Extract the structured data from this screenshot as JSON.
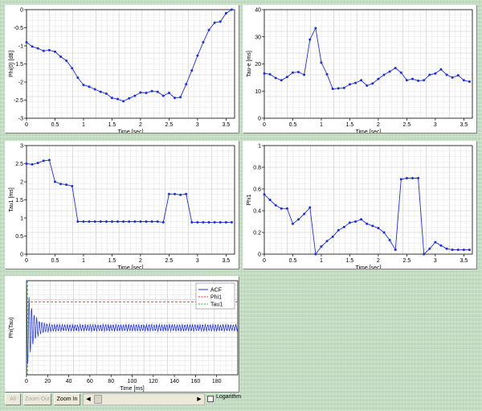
{
  "chart_data": [
    {
      "id": "phi0",
      "type": "line",
      "xlabel": "Time [sec]",
      "ylabel": "Phi(0) [dB]",
      "xlim": [
        0,
        3.65
      ],
      "ylim": [
        -3,
        0
      ],
      "xticks": [
        0,
        0.5,
        1,
        1.5,
        2,
        2.5,
        3,
        3.5
      ],
      "xtick_labels": [
        "0",
        "0.5",
        "1",
        "1.5",
        "2",
        "2.5",
        "3",
        "3.5"
      ],
      "yticks": [
        -3,
        -2.5,
        -2,
        -1.5,
        -1,
        -0.5,
        0
      ],
      "ytick_labels": [
        "-3",
        "-2.5",
        "-2",
        "-1.5",
        "-1",
        "-0.5",
        "0"
      ],
      "grid": true,
      "color": "#1f2fd6",
      "x": [
        0,
        0.1,
        0.2,
        0.3,
        0.4,
        0.5,
        0.6,
        0.7,
        0.8,
        0.9,
        1.0,
        1.1,
        1.2,
        1.3,
        1.4,
        1.5,
        1.6,
        1.7,
        1.8,
        1.9,
        2.0,
        2.1,
        2.2,
        2.3,
        2.4,
        2.5,
        2.6,
        2.7,
        2.8,
        2.9,
        3.0,
        3.1,
        3.2,
        3.3,
        3.4,
        3.5,
        3.6
      ],
      "y": [
        -0.9,
        -1.02,
        -1.07,
        -1.14,
        -1.12,
        -1.16,
        -1.3,
        -1.41,
        -1.62,
        -1.88,
        -2.08,
        -2.13,
        -2.2,
        -2.27,
        -2.32,
        -2.44,
        -2.47,
        -2.53,
        -2.45,
        -2.38,
        -2.29,
        -2.3,
        -2.25,
        -2.27,
        -2.38,
        -2.3,
        -2.44,
        -2.42,
        -2.06,
        -1.68,
        -1.27,
        -0.9,
        -0.56,
        -0.36,
        -0.33,
        -0.1,
        0
      ]
    },
    {
      "id": "taue",
      "type": "line",
      "xlabel": "Time [sec]",
      "ylabel": "Tau-e [ms]",
      "xlim": [
        0,
        3.65
      ],
      "ylim": [
        0,
        40
      ],
      "xticks": [
        0,
        0.5,
        1,
        1.5,
        2,
        2.5,
        3,
        3.5
      ],
      "xtick_labels": [
        "0",
        "0.5",
        "1",
        "1.5",
        "2",
        "2.5",
        "3",
        "3.5"
      ],
      "yticks": [
        0,
        10,
        20,
        30,
        40
      ],
      "ytick_labels": [
        "0",
        "10",
        "20",
        "30",
        "40"
      ],
      "grid": true,
      "color": "#1f2fd6",
      "x": [
        0,
        0.1,
        0.2,
        0.3,
        0.4,
        0.5,
        0.6,
        0.7,
        0.8,
        0.9,
        1.0,
        1.1,
        1.2,
        1.3,
        1.4,
        1.5,
        1.6,
        1.7,
        1.8,
        1.9,
        2.0,
        2.1,
        2.2,
        2.3,
        2.4,
        2.5,
        2.6,
        2.7,
        2.8,
        2.9,
        3.0,
        3.1,
        3.2,
        3.3,
        3.4,
        3.5,
        3.6
      ],
      "y": [
        16.5,
        16.2,
        14.8,
        14.0,
        15.2,
        16.8,
        17.0,
        16.0,
        29.0,
        33.2,
        20.5,
        16.2,
        10.8,
        11.0,
        11.2,
        12.5,
        13.0,
        14.0,
        12.0,
        12.8,
        14.5,
        16.0,
        17.2,
        18.5,
        16.8,
        14.0,
        14.5,
        13.8,
        14.0,
        16.0,
        16.5,
        18.0,
        16.0,
        15.0,
        15.8,
        14.0,
        13.5
      ]
    },
    {
      "id": "tau1",
      "type": "line",
      "xlabel": "Time [sec]",
      "ylabel": "Tau1 [ms]",
      "xlim": [
        0,
        3.65
      ],
      "ylim": [
        0,
        3
      ],
      "xticks": [
        0,
        0.5,
        1,
        1.5,
        2,
        2.5,
        3,
        3.5
      ],
      "xtick_labels": [
        "0",
        "0.5",
        "1",
        "1.5",
        "2",
        "2.5",
        "3",
        "3.5"
      ],
      "yticks": [
        0,
        0.5,
        1,
        1.5,
        2,
        2.5,
        3
      ],
      "ytick_labels": [
        "0",
        "0.5",
        "1",
        "1.5",
        "2",
        "2.5",
        "3"
      ],
      "grid": true,
      "color": "#1f2fd6",
      "x": [
        0,
        0.1,
        0.2,
        0.3,
        0.4,
        0.5,
        0.6,
        0.7,
        0.8,
        0.9,
        1.0,
        1.1,
        1.2,
        1.3,
        1.4,
        1.5,
        1.6,
        1.7,
        1.8,
        1.9,
        2.0,
        2.1,
        2.2,
        2.3,
        2.4,
        2.5,
        2.6,
        2.7,
        2.8,
        2.9,
        3.0,
        3.1,
        3.2,
        3.3,
        3.4,
        3.5,
        3.6
      ],
      "y": [
        2.5,
        2.48,
        2.52,
        2.58,
        2.6,
        2.0,
        1.94,
        1.92,
        1.88,
        0.9,
        0.9,
        0.9,
        0.9,
        0.9,
        0.9,
        0.9,
        0.9,
        0.9,
        0.9,
        0.9,
        0.9,
        0.9,
        0.9,
        0.9,
        0.88,
        1.66,
        1.66,
        1.64,
        1.66,
        0.88,
        0.88,
        0.88,
        0.88,
        0.88,
        0.88,
        0.88,
        0.88
      ]
    },
    {
      "id": "phi1",
      "type": "line",
      "xlabel": "Time [sec]",
      "ylabel": "Phi1",
      "xlim": [
        0,
        3.65
      ],
      "ylim": [
        0,
        1
      ],
      "xticks": [
        0,
        0.5,
        1,
        1.5,
        2,
        2.5,
        3,
        3.5
      ],
      "xtick_labels": [
        "0",
        "0.5",
        "1",
        "1.5",
        "2",
        "2.5",
        "3",
        "3.5"
      ],
      "yticks": [
        0,
        0.2,
        0.4,
        0.6,
        0.8,
        1
      ],
      "ytick_labels": [
        "0",
        "0.2",
        "0.4",
        "0.6",
        "0.8",
        "1"
      ],
      "grid": true,
      "color": "#1f2fd6",
      "x": [
        0,
        0.1,
        0.2,
        0.3,
        0.4,
        0.5,
        0.6,
        0.7,
        0.8,
        0.9,
        1.0,
        1.1,
        1.2,
        1.3,
        1.4,
        1.5,
        1.6,
        1.7,
        1.8,
        1.9,
        2.0,
        2.1,
        2.2,
        2.3,
        2.4,
        2.5,
        2.6,
        2.7,
        2.8,
        2.9,
        3.0,
        3.1,
        3.2,
        3.3,
        3.4,
        3.5,
        3.6
      ],
      "y": [
        0.55,
        0.5,
        0.45,
        0.42,
        0.42,
        0.28,
        0.32,
        0.37,
        0.43,
        0.0,
        0.07,
        0.12,
        0.16,
        0.22,
        0.25,
        0.29,
        0.3,
        0.32,
        0.28,
        0.26,
        0.24,
        0.2,
        0.13,
        0.04,
        0.69,
        0.7,
        0.7,
        0.7,
        0.0,
        0.05,
        0.11,
        0.08,
        0.05,
        0.04,
        0.04,
        0.04,
        0.04
      ]
    },
    {
      "id": "acf",
      "type": "line",
      "xlabel": "Time [ms]",
      "ylabel": "Phi(Tau)",
      "xlim": [
        0,
        200
      ],
      "ylim": [
        -1,
        1
      ],
      "xticks": [
        0,
        20,
        40,
        60,
        80,
        100,
        120,
        140,
        160,
        180
      ],
      "xtick_labels": [
        "0",
        "20",
        "40",
        "60",
        "80",
        "100",
        "120",
        "140",
        "160",
        "180"
      ],
      "grid": true,
      "legend": "top-right",
      "series": [
        {
          "name": "ACF",
          "color": "#1f2fd6",
          "style": "solid"
        },
        {
          "name": "Phi1",
          "color": "#e03030",
          "style": "dashed",
          "value": 0.55
        },
        {
          "name": "Tau1",
          "color": "#30a030",
          "style": "dashed",
          "value": 0.88
        }
      ]
    }
  ],
  "toolbar": {
    "all_label": "All",
    "zoom_out_label": "Zoom Out",
    "zoom_in_label": "Zoom In",
    "scroll_left": "◀",
    "scroll_right": "▶",
    "logarithm_label": "Logarithm"
  }
}
